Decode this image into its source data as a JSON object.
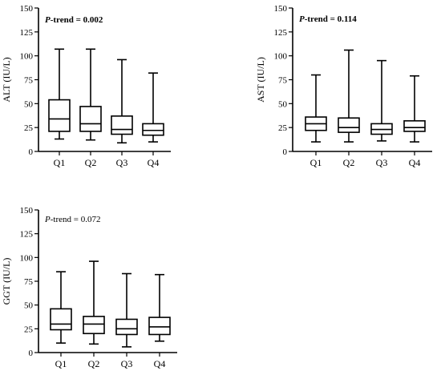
{
  "chart_data": [
    {
      "type": "boxplot",
      "ylabel": "ALT (IU/L)",
      "annotation": {
        "prefix": "P",
        "rest": "-trend = 0.002",
        "bold": true
      },
      "categories": [
        "Q1",
        "Q2",
        "Q3",
        "Q4"
      ],
      "yticks": [
        "0",
        "25",
        "50",
        "75",
        "100",
        "125",
        "150"
      ],
      "ylim": [
        0,
        150
      ],
      "boxes": [
        {
          "category": "Q1",
          "min": 13,
          "q1": 21,
          "median": 34,
          "q3": 54,
          "max": 107
        },
        {
          "category": "Q2",
          "min": 12,
          "q1": 21,
          "median": 29,
          "q3": 47,
          "max": 107
        },
        {
          "category": "Q3",
          "min": 9,
          "q1": 18,
          "median": 23,
          "q3": 37,
          "max": 96
        },
        {
          "category": "Q4",
          "min": 10,
          "q1": 17,
          "median": 22,
          "q3": 29,
          "max": 82
        }
      ]
    },
    {
      "type": "boxplot",
      "ylabel": "AST (IU/L)",
      "annotation": {
        "prefix": "P",
        "rest": "-trend = 0.114",
        "bold": true
      },
      "categories": [
        "Q1",
        "Q2",
        "Q3",
        "Q4"
      ],
      "yticks": [
        "0",
        "25",
        "50",
        "75",
        "100",
        "125",
        "150"
      ],
      "ylim": [
        0,
        150
      ],
      "boxes": [
        {
          "category": "Q1",
          "min": 10,
          "q1": 22,
          "median": 29,
          "q3": 36,
          "max": 80
        },
        {
          "category": "Q2",
          "min": 10,
          "q1": 20,
          "median": 25,
          "q3": 35,
          "max": 106
        },
        {
          "category": "Q3",
          "min": 11,
          "q1": 18,
          "median": 23,
          "q3": 29,
          "max": 95
        },
        {
          "category": "Q4",
          "min": 10,
          "q1": 21,
          "median": 25,
          "q3": 32,
          "max": 79
        }
      ]
    },
    {
      "type": "boxplot",
      "ylabel": "GGT (IU/L)",
      "annotation": {
        "prefix": "P",
        "rest": "-trend = 0.072",
        "bold": false
      },
      "categories": [
        "Q1",
        "Q2",
        "Q3",
        "Q4"
      ],
      "yticks": [
        "0",
        "25",
        "50",
        "75",
        "100",
        "125",
        "150"
      ],
      "ylim": [
        0,
        150
      ],
      "boxes": [
        {
          "category": "Q1",
          "min": 10,
          "q1": 24,
          "median": 30,
          "q3": 46,
          "max": 85
        },
        {
          "category": "Q2",
          "min": 9,
          "q1": 20,
          "median": 30,
          "q3": 38,
          "max": 96
        },
        {
          "category": "Q3",
          "min": 6,
          "q1": 19,
          "median": 25,
          "q3": 35,
          "max": 83
        },
        {
          "category": "Q4",
          "min": 12,
          "q1": 19,
          "median": 27,
          "q3": 37,
          "max": 82
        }
      ]
    }
  ]
}
